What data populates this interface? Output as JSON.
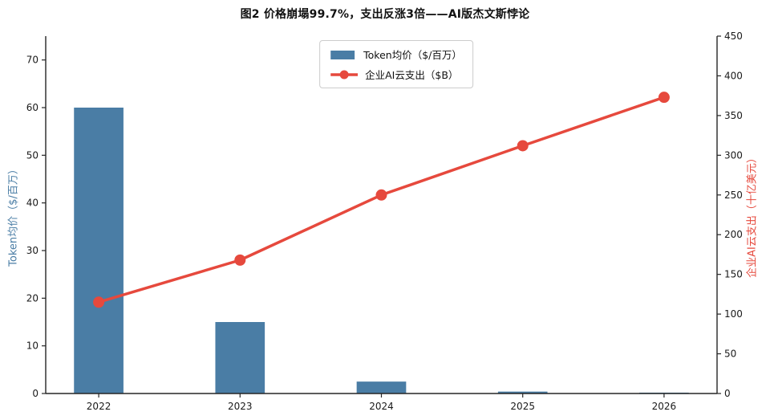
{
  "figure": {
    "title": "图2  价格崩塌99.7%，支出反涨3倍——AI版杰文斯悖论"
  },
  "legend": {
    "items": [
      {
        "label": "Token均价（$/百万）",
        "color": "#4A7DA5",
        "swatch": "bar"
      },
      {
        "label": "企业AI云支出（$B）",
        "color": "#E6493D",
        "swatch": "line-marker"
      }
    ]
  },
  "chart_data": {
    "type": "bar+line dual-axis combo",
    "title": "图2  价格崩塌99.7%，支出反涨3倍——AI版杰文斯悖论",
    "categories": [
      "2022",
      "2023",
      "2024",
      "2025",
      "2026"
    ],
    "series": [
      {
        "name": "Token均价（$/百万）",
        "type": "bar",
        "y_axis": "left",
        "color": "#4A7DA5",
        "values": [
          60,
          15,
          2.5,
          0.4,
          0.18
        ]
      },
      {
        "name": "企业AI云支出（$B）",
        "type": "line",
        "y_axis": "right",
        "color": "#E6493D",
        "values": [
          115,
          168,
          250,
          312,
          373
        ]
      }
    ],
    "left_axis": {
      "label": "Token均价（$/百万）",
      "color": "#4A7DA5",
      "min": 0,
      "max": 75,
      "ticks": [
        0,
        10,
        20,
        30,
        40,
        50,
        60,
        70
      ]
    },
    "right_axis": {
      "label": "企业AI云支出（十亿美元）",
      "color": "#E6493D",
      "min": 0,
      "max": 450,
      "ticks": [
        0,
        50,
        100,
        150,
        200,
        250,
        300,
        350,
        400,
        450
      ]
    },
    "x_axis": {
      "tick_labels": [
        "2022",
        "2023",
        "2024",
        "2025",
        "2026"
      ]
    },
    "grid": false,
    "legend_position": "upper center"
  }
}
